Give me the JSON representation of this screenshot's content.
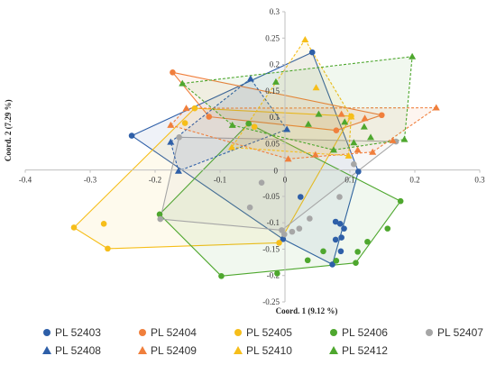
{
  "chart_data": {
    "type": "scatter",
    "xlabel": "Coord. 1 (9.12 %)",
    "ylabel": "Coord. 2 (7.29 %)",
    "xlim": [
      -0.4,
      0.3
    ],
    "ylim": [
      -0.25,
      0.3
    ],
    "xticks": [
      "-0.4",
      "-0.3",
      "-0.2",
      "-0.1",
      "0",
      "0.1",
      "0.2",
      "0.3"
    ],
    "yticks": [
      "-0.25",
      "-0.2",
      "-0.15",
      "-0.1",
      "-0.05",
      "0",
      "0.05",
      "0.1",
      "0.15",
      "0.2",
      "0.25",
      "0.3"
    ],
    "grid": false,
    "legend_position": "bottom",
    "series": [
      {
        "name": "PL 52403",
        "marker": "circle",
        "color": "#2E5FA8",
        "points": [
          [
            -0.236,
            0.065
          ],
          [
            -0.003,
            -0.131
          ],
          [
            0.024,
            -0.051
          ],
          [
            0.078,
            -0.098
          ],
          [
            0.085,
            -0.102
          ],
          [
            0.078,
            -0.132
          ],
          [
            0.091,
            -0.111
          ],
          [
            0.087,
            -0.128
          ],
          [
            0.042,
            0.223
          ],
          [
            0.113,
            -0.003
          ],
          [
            0.073,
            -0.179
          ],
          [
            0.086,
            -0.154
          ]
        ],
        "hull": [
          [
            -0.236,
            0.065
          ],
          [
            0.042,
            0.223
          ],
          [
            0.113,
            -0.003
          ],
          [
            0.073,
            -0.179
          ],
          [
            -0.003,
            -0.131
          ],
          [
            -0.236,
            0.065
          ]
        ]
      },
      {
        "name": "PL 52404",
        "marker": "circle",
        "color": "#F07F3C",
        "points": [
          [
            -0.173,
            0.185
          ],
          [
            -0.117,
            0.101
          ],
          [
            0.079,
            0.075
          ],
          [
            0.149,
            0.104
          ]
        ],
        "hull": [
          [
            -0.173,
            0.185
          ],
          [
            0.149,
            0.104
          ],
          [
            0.079,
            0.075
          ],
          [
            -0.117,
            0.101
          ],
          [
            -0.173,
            0.185
          ]
        ]
      },
      {
        "name": "PL 52405",
        "marker": "circle",
        "color": "#F6BE1A",
        "points": [
          [
            -0.325,
            -0.109
          ],
          [
            -0.279,
            -0.102
          ],
          [
            -0.273,
            -0.149
          ],
          [
            -0.154,
            0.089
          ],
          [
            -0.139,
            0.117
          ],
          [
            -0.047,
            0.082
          ],
          [
            -0.009,
            -0.138
          ],
          [
            0.102,
            0.102
          ]
        ],
        "hull": [
          [
            -0.325,
            -0.109
          ],
          [
            -0.139,
            0.117
          ],
          [
            0.102,
            0.102
          ],
          [
            -0.009,
            -0.138
          ],
          [
            -0.273,
            -0.149
          ],
          [
            -0.325,
            -0.109
          ]
        ]
      },
      {
        "name": "PL 52406",
        "marker": "circle",
        "color": "#4EA72E",
        "points": [
          [
            -0.193,
            -0.084
          ],
          [
            -0.098,
            -0.201
          ],
          [
            -0.056,
            0.088
          ],
          [
            -0.012,
            -0.196
          ],
          [
            0.035,
            -0.171
          ],
          [
            0.059,
            -0.154
          ],
          [
            0.079,
            -0.172
          ],
          [
            0.109,
            -0.176
          ],
          [
            0.112,
            -0.155
          ],
          [
            0.127,
            -0.136
          ],
          [
            0.158,
            -0.111
          ],
          [
            0.178,
            -0.059
          ]
        ],
        "hull": [
          [
            -0.193,
            -0.084
          ],
          [
            -0.056,
            0.088
          ],
          [
            0.178,
            -0.059
          ],
          [
            0.109,
            -0.176
          ],
          [
            -0.098,
            -0.201
          ],
          [
            -0.193,
            -0.084
          ]
        ]
      },
      {
        "name": "PL 52407",
        "marker": "circle",
        "color": "#A6A6A6",
        "points": [
          [
            -0.192,
            -0.093
          ],
          [
            -0.163,
            0.062
          ],
          [
            -0.054,
            -0.071
          ],
          [
            -0.036,
            -0.024
          ],
          [
            -0.005,
            -0.114
          ],
          [
            -0.001,
            -0.122
          ],
          [
            0.011,
            -0.117
          ],
          [
            0.022,
            -0.111
          ],
          [
            0.038,
            -0.092
          ],
          [
            0.084,
            -0.051
          ],
          [
            0.106,
            0.011
          ],
          [
            0.171,
            0.054
          ]
        ],
        "hull": [
          [
            -0.192,
            -0.093
          ],
          [
            -0.163,
            0.062
          ],
          [
            0.171,
            0.054
          ],
          [
            -0.005,
            -0.114
          ],
          [
            -0.192,
            -0.093
          ]
        ]
      },
      {
        "name": "PL 52408",
        "marker": "triangle",
        "color": "#2E5FA8",
        "points": [
          [
            -0.176,
            0.053
          ],
          [
            -0.164,
            -0.002
          ],
          [
            -0.053,
            0.173
          ],
          [
            0.003,
            0.077
          ]
        ],
        "hull": [
          [
            -0.176,
            0.053
          ],
          [
            -0.053,
            0.173
          ],
          [
            0.003,
            0.077
          ],
          [
            -0.164,
            -0.002
          ],
          [
            -0.176,
            0.053
          ]
        ]
      },
      {
        "name": "PL 52409",
        "marker": "triangle",
        "color": "#F07F3C",
        "points": [
          [
            -0.176,
            0.085
          ],
          [
            -0.152,
            0.117
          ],
          [
            0.005,
            0.021
          ],
          [
            0.047,
            0.029
          ],
          [
            0.087,
            0.106
          ],
          [
            0.112,
            0.038
          ],
          [
            0.123,
            0.098
          ],
          [
            0.135,
            0.034
          ],
          [
            0.166,
            0.056
          ],
          [
            0.233,
            0.118
          ]
        ],
        "hull": [
          [
            -0.176,
            0.085
          ],
          [
            -0.152,
            0.117
          ],
          [
            0.233,
            0.118
          ],
          [
            0.135,
            0.034
          ],
          [
            0.005,
            0.021
          ],
          [
            -0.176,
            0.085
          ]
        ]
      },
      {
        "name": "PL 52410",
        "marker": "triangle",
        "color": "#F6BE1A",
        "points": [
          [
            0.031,
            0.247
          ],
          [
            0.048,
            0.156
          ],
          [
            0.102,
            0.101
          ],
          [
            0.098,
            0.027
          ],
          [
            -0.082,
            0.043
          ]
        ],
        "hull": [
          [
            0.031,
            0.247
          ],
          [
            0.102,
            0.101
          ],
          [
            0.098,
            0.027
          ],
          [
            -0.082,
            0.043
          ],
          [
            0.031,
            0.247
          ]
        ]
      },
      {
        "name": "PL 52412",
        "marker": "triangle",
        "color": "#4EA72E",
        "points": [
          [
            -0.158,
            0.164
          ],
          [
            -0.081,
            0.085
          ],
          [
            -0.014,
            0.167
          ],
          [
            0.036,
            0.087
          ],
          [
            0.052,
            0.106
          ],
          [
            0.092,
            0.091
          ],
          [
            0.106,
            0.052
          ],
          [
            0.122,
            0.082
          ],
          [
            0.132,
            0.062
          ],
          [
            0.184,
            0.058
          ],
          [
            0.196,
            0.215
          ],
          [
            0.075,
            0.038
          ]
        ],
        "hull": [
          [
            -0.158,
            0.164
          ],
          [
            0.196,
            0.215
          ],
          [
            0.184,
            0.058
          ],
          [
            0.075,
            0.038
          ],
          [
            -0.081,
            0.085
          ],
          [
            -0.158,
            0.164
          ]
        ]
      }
    ]
  }
}
